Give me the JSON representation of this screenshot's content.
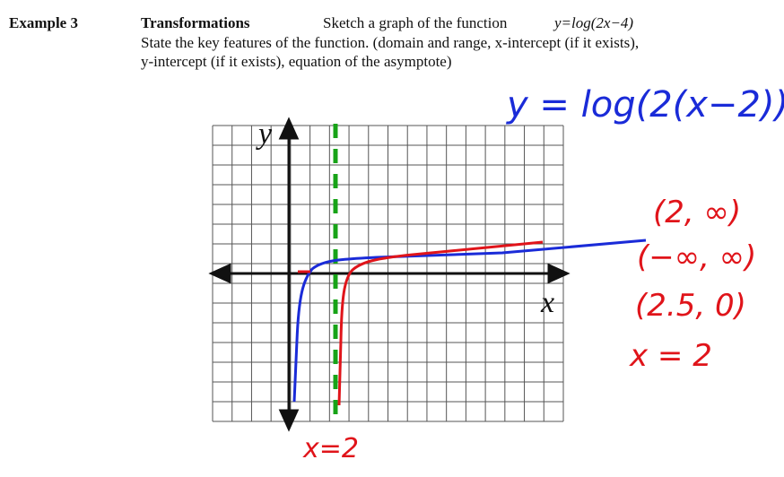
{
  "header": {
    "example": "Example 3",
    "topic": "Transformations",
    "prompt": "Sketch a graph of the function",
    "function": "y=log(2x−4)"
  },
  "instructions": [
    "State the key features of the function. (domain and range, x-intercept (if it exists),",
    "y-intercept (if it exists), equation of the asymptote)"
  ],
  "graph": {
    "y_label": "y",
    "x_label": "x"
  },
  "annotations": {
    "rewritten": "y = log(2(x−2))",
    "domain": "(2, ∞)",
    "range": "(−∞, ∞)",
    "x_intercept": "(2.5, 0)",
    "asymptote": "x = 2",
    "asymptote_label": "x=2"
  }
}
